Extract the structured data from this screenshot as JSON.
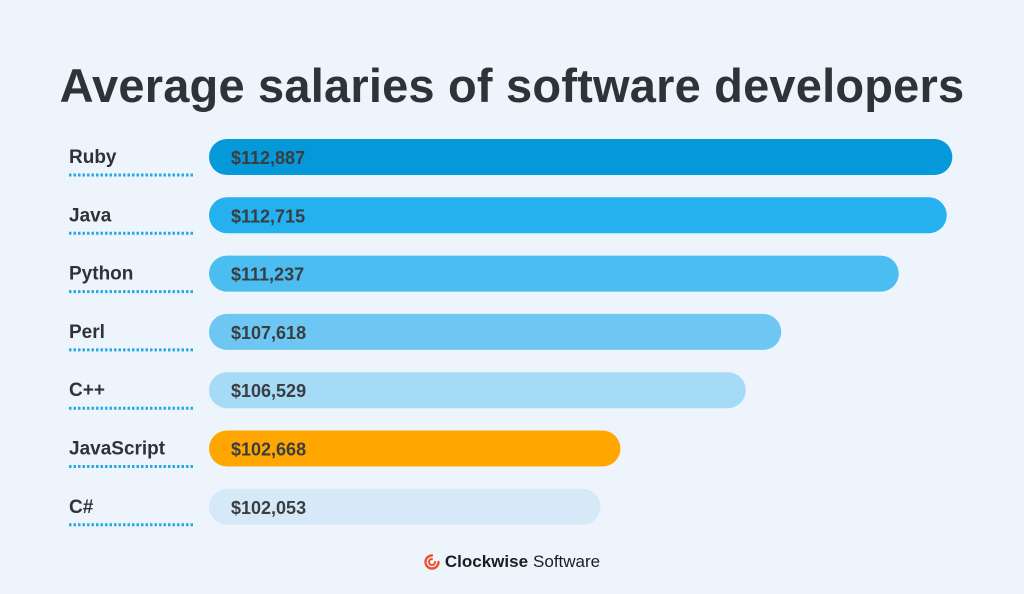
{
  "chart_data": {
    "type": "bar",
    "orientation": "horizontal",
    "title": "Average salaries of software developers",
    "categories": [
      "Ruby",
      "Java",
      "Python",
      "Perl",
      "C++",
      "JavaScript",
      "C#"
    ],
    "values": [
      112887,
      112715,
      111237,
      107618,
      106529,
      102668,
      102053
    ],
    "value_labels": [
      "$112,887",
      "$112,715",
      "$111,237",
      "$107,618",
      "$106,529",
      "$102,668",
      "$102,053"
    ],
    "colors": [
      "#0699d9",
      "#25b0ef",
      "#4bbdf0",
      "#6ec6f3",
      "#a6dbf7",
      "#ffa700",
      "#d6e9f9"
    ],
    "xlabel": "",
    "ylabel": "",
    "xlim": [
      90000,
      113000
    ],
    "grid": false,
    "legend": "none"
  },
  "brand": {
    "name_bold": "Clockwise",
    "name_regular": "Software",
    "icon": "clockwise-logo-icon",
    "icon_color": "#f0522d"
  }
}
